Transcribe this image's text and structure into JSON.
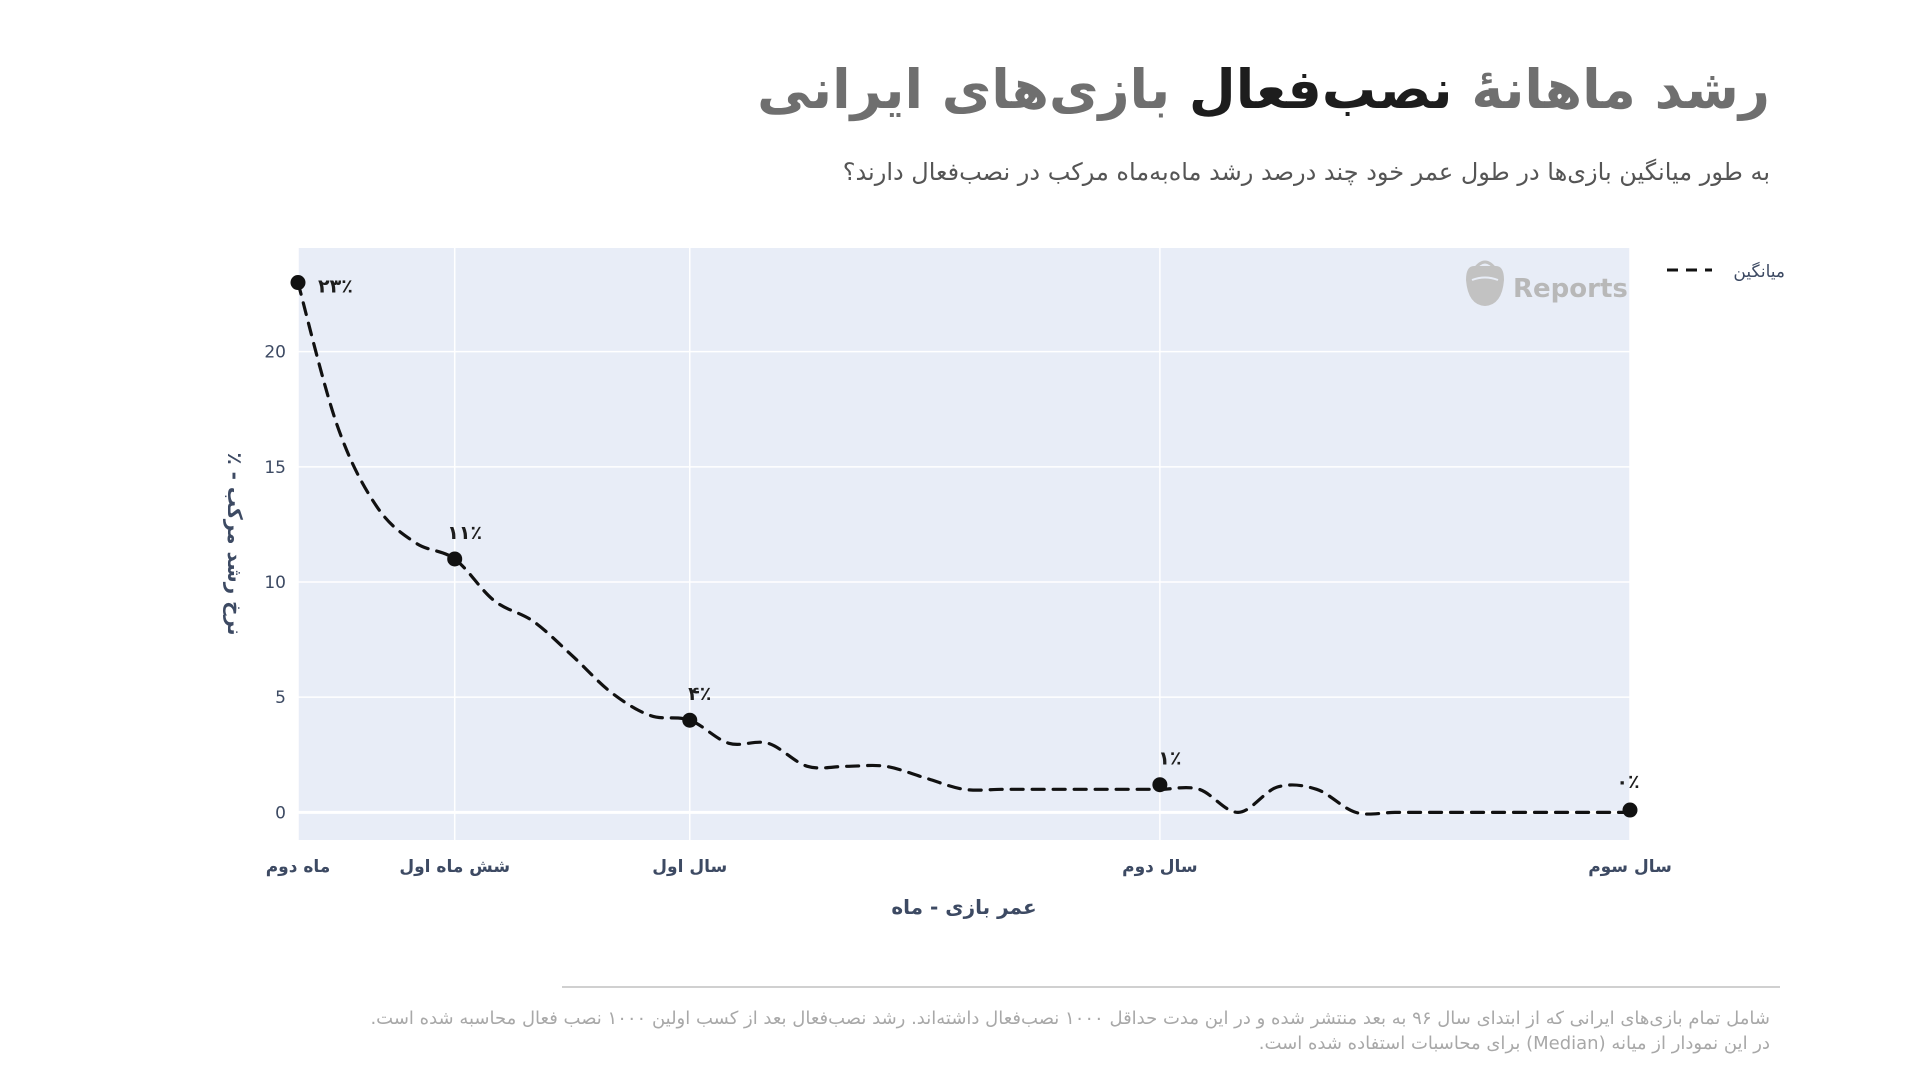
{
  "header": {
    "title_part1": "رشد ماهانهٔ",
    "title_highlight": "نصب‌فعال",
    "title_part2": "بازی‌های ایرانی",
    "subtitle": "به طور میانگین بازی‌ها در طول عمر خود چند درصد رشد ماه‌به‌ماه مرکب در نصب‌فعال دارند؟"
  },
  "watermark": {
    "text": "Reports",
    "icon": "basket-icon"
  },
  "footnote": {
    "line1": "شامل تمام بازی‌های ایرانی که از ابتدای سال ۹۶ به بعد منتشر شده و در این مدت حداقل ۱۰۰۰ نصب‌فعال داشته‌اند. رشد نصب‌فعال بعد از کسب اولین ۱۰۰۰ نصب فعال محاسبه شده است.",
    "line2": "در این نمودار از میانه (Median) برای محاسبات استفاده شده است."
  },
  "chart_data": {
    "type": "line",
    "xlabel": "عمر بازی - ماه",
    "ylabel": "٪ - نرخ رشد مرکب",
    "xlim": [
      2,
      36
    ],
    "ylim": [
      -1.2,
      24.5
    ],
    "yticks": [
      0,
      5,
      10,
      15,
      20
    ],
    "xticks": [
      {
        "x": 2,
        "label": "ماه دوم"
      },
      {
        "x": 6,
        "label": "شش ماه اول"
      },
      {
        "x": 12,
        "label": "سال اول"
      },
      {
        "x": 24,
        "label": "سال دوم"
      },
      {
        "x": 36,
        "label": "سال سوم"
      }
    ],
    "grid": true,
    "legend_position": "top-right",
    "series": [
      {
        "name": "میانگین",
        "color": "#111111",
        "style": "dashed",
        "x": [
          2,
          3,
          4,
          5,
          6,
          7,
          8,
          9,
          10,
          11,
          12,
          13,
          14,
          15,
          16,
          17,
          18,
          19,
          20,
          21,
          22,
          23,
          24,
          25,
          26,
          27,
          28,
          29,
          30,
          31,
          32,
          33,
          34,
          35,
          36
        ],
        "y": [
          23,
          16.8,
          13.3,
          11.7,
          11,
          9.2,
          8.3,
          6.8,
          5.2,
          4.2,
          4,
          3,
          3,
          2,
          2,
          2,
          1.5,
          1,
          1,
          1,
          1,
          1,
          1,
          1,
          0,
          1.1,
          1,
          0,
          0,
          0,
          0,
          0,
          0,
          0,
          0
        ]
      }
    ],
    "annotations": [
      {
        "x": 2,
        "y": 23,
        "label": "۲۳٪"
      },
      {
        "x": 6,
        "y": 11,
        "label": "۱۱٪"
      },
      {
        "x": 12,
        "y": 4,
        "label": "۴٪"
      },
      {
        "x": 24,
        "y": 1.2,
        "label": "۱٪"
      },
      {
        "x": 36,
        "y": 0.1,
        "label": "۰٪"
      }
    ]
  }
}
